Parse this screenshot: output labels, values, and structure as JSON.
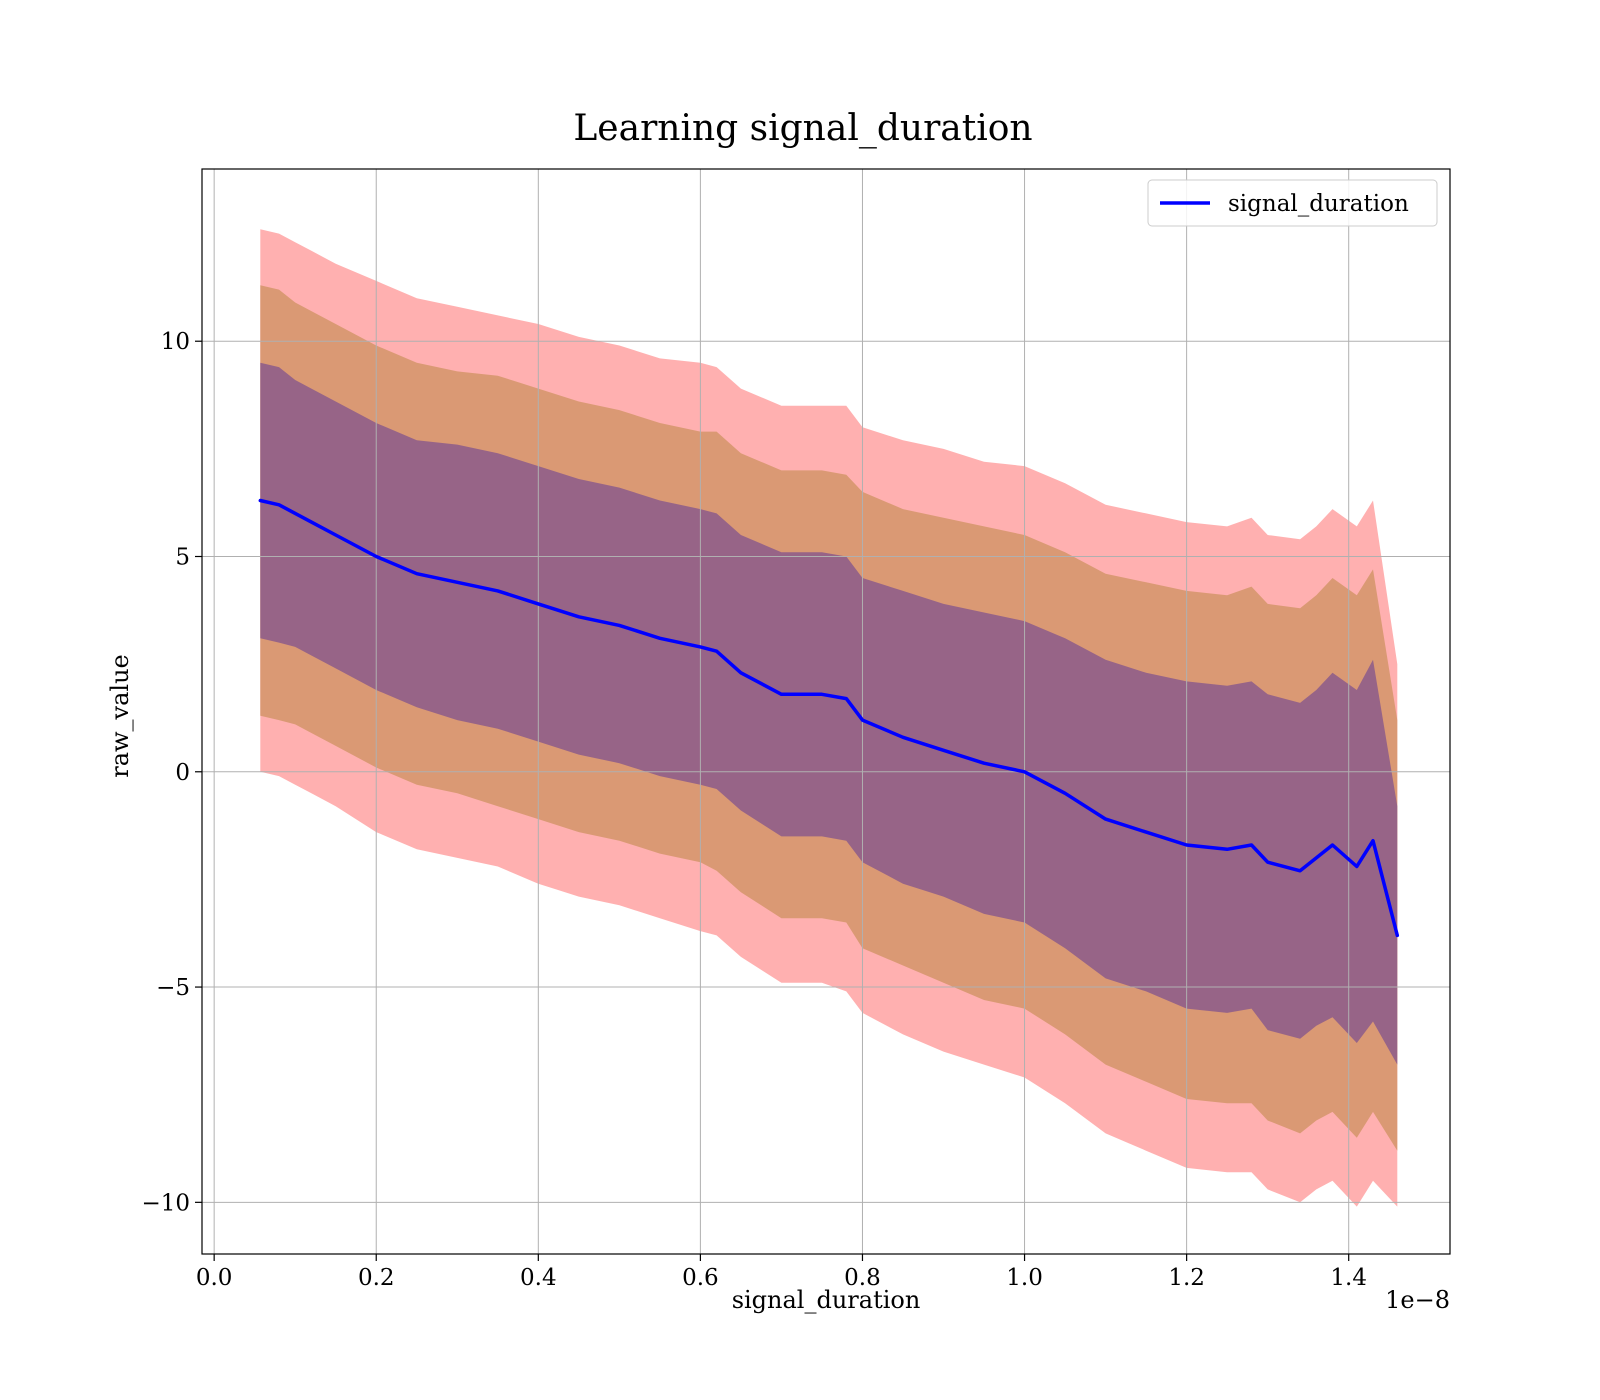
{
  "chart_data": {
    "type": "line",
    "title": "Learning signal_duration",
    "xlabel": "signal_duration",
    "ylabel": "raw_value",
    "x_offset_text": "1e−8",
    "xlim": [
      -0.015,
      1.525
    ],
    "ylim": [
      -11.2,
      14.0
    ],
    "xticks": [
      0.0,
      0.2,
      0.4,
      0.6,
      0.8,
      1.0,
      1.2,
      1.4
    ],
    "xtick_labels": [
      "0.0",
      "0.2",
      "0.4",
      "0.6",
      "0.8",
      "1.0",
      "1.2",
      "1.4"
    ],
    "yticks": [
      10,
      5,
      0,
      -5,
      -10
    ],
    "ytick_labels": [
      "10",
      "5",
      "0",
      "−5",
      "−10"
    ],
    "grid": true,
    "legend_position": "top-right",
    "series": [
      {
        "name": "signal_duration",
        "color": "#0000ff",
        "x": [
          0.057,
          0.08,
          0.1,
          0.12,
          0.15,
          0.2,
          0.25,
          0.3,
          0.35,
          0.4,
          0.45,
          0.5,
          0.55,
          0.6,
          0.62,
          0.65,
          0.7,
          0.75,
          0.78,
          0.8,
          0.85,
          0.9,
          0.95,
          1.0,
          1.05,
          1.1,
          1.15,
          1.2,
          1.25,
          1.28,
          1.3,
          1.34,
          1.36,
          1.38,
          1.41,
          1.43,
          1.46
        ],
        "y": [
          6.3,
          6.2,
          6.0,
          5.8,
          5.5,
          5.0,
          4.6,
          4.4,
          4.2,
          3.9,
          3.6,
          3.4,
          3.1,
          2.9,
          2.8,
          2.3,
          1.8,
          1.8,
          1.7,
          1.2,
          0.8,
          0.5,
          0.2,
          0.0,
          -0.5,
          -1.1,
          -1.4,
          -1.7,
          -1.8,
          -1.7,
          -2.1,
          -2.3,
          -2.0,
          -1.7,
          -2.2,
          -1.6,
          -3.8
        ]
      }
    ],
    "bands": {
      "sigma_levels": [
        1,
        2,
        3
      ],
      "half_widths": [
        [
          3.2,
          3.2,
          3.1,
          3.1,
          3.1,
          3.1,
          3.1,
          3.2,
          3.2,
          3.2,
          3.2,
          3.2,
          3.2,
          3.2,
          3.2,
          3.2,
          3.3,
          3.3,
          3.3,
          3.3,
          3.4,
          3.4,
          3.5,
          3.5,
          3.6,
          3.7,
          3.7,
          3.8,
          3.8,
          3.8,
          3.9,
          3.9,
          3.9,
          4.0,
          4.1,
          4.2,
          3.0
        ],
        [
          5.0,
          5.0,
          4.9,
          4.9,
          4.9,
          4.9,
          4.9,
          4.9,
          5.0,
          5.0,
          5.0,
          5.0,
          5.0,
          5.0,
          5.1,
          5.1,
          5.2,
          5.2,
          5.2,
          5.3,
          5.3,
          5.4,
          5.5,
          5.5,
          5.6,
          5.7,
          5.8,
          5.9,
          5.9,
          6.0,
          6.0,
          6.1,
          6.1,
          6.2,
          6.3,
          6.3,
          5.0
        ],
        [
          6.3,
          6.3,
          6.3,
          6.3,
          6.3,
          6.4,
          6.4,
          6.4,
          6.4,
          6.5,
          6.5,
          6.5,
          6.5,
          6.6,
          6.6,
          6.6,
          6.7,
          6.7,
          6.8,
          6.8,
          6.9,
          7.0,
          7.0,
          7.1,
          7.2,
          7.3,
          7.4,
          7.5,
          7.5,
          7.6,
          7.6,
          7.7,
          7.7,
          7.8,
          7.9,
          7.9,
          6.3
        ]
      ],
      "colors": [
        "#8b5a8b",
        "#d4956a",
        "#ff8080"
      ]
    }
  }
}
